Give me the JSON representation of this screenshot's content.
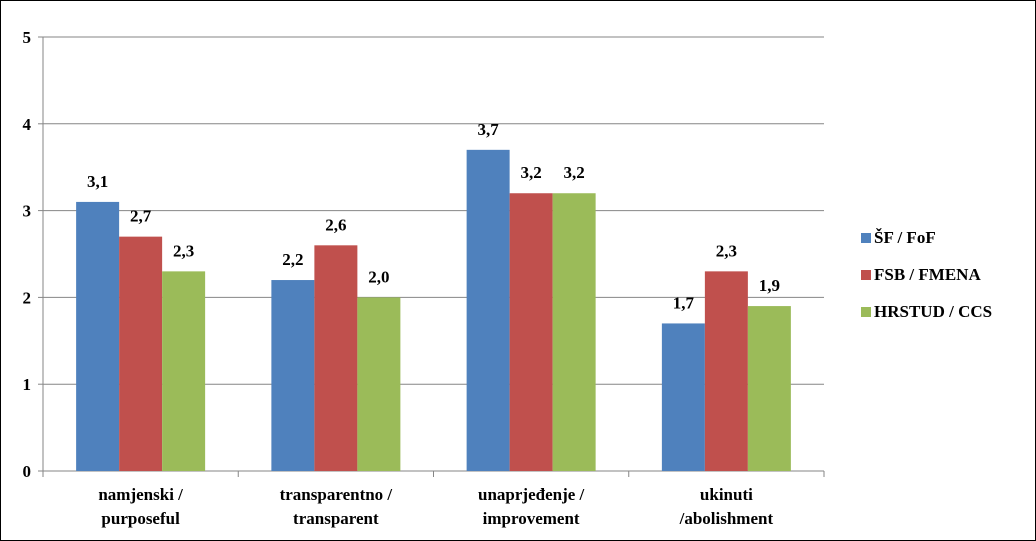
{
  "chart_data": {
    "type": "bar",
    "categories": [
      [
        "namjenski /",
        "purposeful"
      ],
      [
        "transparentno /",
        "transparent"
      ],
      [
        "unaprjeđenje /",
        "improvement"
      ],
      [
        "ukinuti",
        "/abolishment"
      ]
    ],
    "series": [
      {
        "name": "ŠF / FoF",
        "color": "#4F81BD",
        "values": [
          3.1,
          2.2,
          3.7,
          1.7
        ],
        "labels": [
          "3,1",
          "2,2",
          "3,7",
          "1,7"
        ]
      },
      {
        "name": "FSB / FMENA",
        "color": "#C0504D",
        "values": [
          2.7,
          2.6,
          3.2,
          2.3
        ],
        "labels": [
          "2,7",
          "2,6",
          "3,2",
          "2,3"
        ]
      },
      {
        "name": "HRSTUD / CCS",
        "color": "#9BBB59",
        "values": [
          2.3,
          2.0,
          3.2,
          1.9
        ],
        "labels": [
          "2,3",
          "2,0",
          "3,2",
          "1,9"
        ]
      }
    ],
    "ylim": [
      0,
      5
    ],
    "yticks": [
      "0",
      "1",
      "2",
      "3",
      "4",
      "5"
    ],
    "grid": true,
    "legend": "right"
  }
}
